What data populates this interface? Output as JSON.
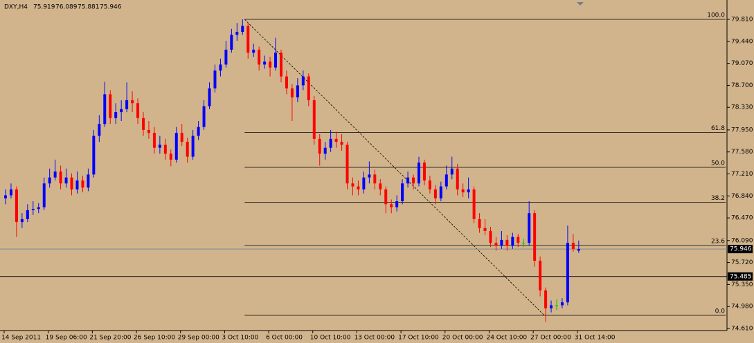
{
  "chart_data": {
    "type": "candlestick",
    "symbol": "DXY,H4",
    "categories": [
      "14 Sep 2011",
      null,
      null,
      null,
      null,
      null,
      null,
      null,
      "19 Sep 06:00",
      null,
      null,
      null,
      null,
      null,
      null,
      null,
      "21 Sep 20:00",
      null,
      null,
      null,
      null,
      null,
      null,
      null,
      "26 Sep 10:00",
      null,
      null,
      null,
      null,
      null,
      null,
      null,
      "29 Sep 00:00",
      null,
      null,
      null,
      null,
      null,
      null,
      null,
      "3 Oct 10:00",
      null,
      null,
      null,
      null,
      null,
      null,
      null,
      "6 Oct 00:00",
      null,
      null,
      null,
      null,
      null,
      null,
      null,
      "10 Oct 10:00",
      null,
      null,
      null,
      null,
      null,
      null,
      null,
      "13 Oct 00:00",
      null,
      null,
      null,
      null,
      null,
      null,
      null,
      "17 Oct 10:00",
      null,
      null,
      null,
      null,
      null,
      null,
      null,
      "20 Oct 00:00",
      null,
      null,
      null,
      null,
      null,
      null,
      null,
      "24 Oct 10:00",
      null,
      null,
      null,
      null,
      null,
      null,
      null,
      "27 Oct 00:00",
      null,
      null,
      null,
      null,
      null,
      null,
      null,
      "31 Oct 14:00"
    ],
    "open": [
      76.8,
      76.85,
      76.95,
      76.4,
      76.45,
      76.6,
      76.62,
      76.65,
      77.05,
      77.15,
      77.25,
      77.05,
      77.15,
      76.95,
      77.1,
      76.98,
      77.2,
      77.85,
      78.05,
      78.55,
      78.15,
      78.25,
      78.3,
      78.45,
      78.4,
      78.15,
      77.95,
      77.9,
      77.65,
      77.7,
      77.55,
      77.45,
      77.9,
      77.75,
      77.5,
      77.85,
      78.0,
      78.35,
      78.65,
      78.95,
      79.05,
      79.3,
      79.55,
      79.6,
      79.7,
      79.25,
      79.3,
      79.05,
      79.1,
      79.0,
      79.25,
      78.85,
      78.65,
      78.5,
      78.7,
      78.85,
      78.45,
      77.8,
      77.55,
      77.65,
      77.8,
      77.75,
      77.7,
      77.05,
      77.0,
      76.95,
      77.15,
      77.2,
      77.05,
      76.95,
      76.7,
      76.65,
      76.75,
      77.05,
      77.15,
      77.05,
      77.4,
      77.1,
      76.95,
      76.8,
      77.0,
      77.2,
      77.3,
      76.95,
      76.9,
      76.95,
      76.45,
      76.3,
      76.25,
      76.05,
      76.0,
      76.1,
      76.0,
      76.15,
      76.05,
      76.05,
      76.55,
      75.75,
      75.25,
      74.95,
      75.0,
      75.0,
      75.05,
      76.05,
      75.919
    ],
    "high": [
      76.95,
      77.05,
      77.0,
      76.55,
      76.7,
      76.75,
      76.72,
      77.15,
      77.3,
      77.45,
      77.35,
      77.3,
      77.22,
      77.25,
      77.18,
      77.3,
      77.95,
      78.2,
      78.76,
      78.62,
      78.4,
      78.45,
      78.75,
      78.6,
      78.48,
      78.25,
      78.1,
      78.0,
      77.85,
      77.8,
      77.62,
      78.0,
      78.05,
      77.82,
      77.95,
      78.1,
      78.45,
      78.75,
      79.05,
      79.15,
      79.45,
      79.65,
      79.75,
      79.81,
      79.75,
      79.4,
      79.35,
      79.2,
      79.18,
      79.5,
      79.3,
      78.95,
      78.72,
      78.82,
      78.95,
      78.9,
      78.52,
      77.88,
      77.75,
      77.95,
      77.92,
      77.88,
      77.75,
      77.15,
      77.1,
      77.25,
      77.42,
      77.28,
      77.12,
      77.0,
      76.78,
      76.85,
      77.12,
      77.25,
      77.2,
      77.5,
      77.45,
      77.18,
      77.02,
      77.08,
      77.35,
      77.5,
      77.38,
      77.05,
      77.15,
      77.0,
      76.55,
      76.45,
      76.32,
      76.15,
      76.25,
      76.18,
      76.22,
      76.2,
      76.12,
      76.75,
      76.6,
      75.82,
      75.3,
      75.08,
      75.1,
      75.12,
      76.34,
      76.2,
      76.089
    ],
    "low": [
      76.7,
      76.8,
      76.15,
      76.3,
      76.4,
      76.52,
      76.55,
      76.6,
      76.98,
      77.1,
      76.95,
      76.98,
      76.85,
      76.88,
      76.9,
      76.92,
      77.15,
      77.75,
      78.0,
      78.05,
      78.05,
      78.1,
      78.25,
      78.25,
      78.05,
      77.85,
      77.8,
      77.55,
      77.55,
      77.45,
      77.34,
      77.4,
      77.68,
      77.4,
      77.45,
      77.78,
      77.95,
      78.3,
      78.58,
      78.85,
      79.0,
      79.25,
      79.45,
      79.55,
      79.15,
      79.18,
      78.95,
      78.98,
      78.85,
      78.95,
      78.75,
      78.55,
      78.1,
      78.42,
      78.62,
      78.35,
      77.7,
      77.35,
      77.45,
      77.58,
      77.65,
      77.6,
      76.95,
      76.85,
      76.85,
      76.88,
      77.05,
      76.95,
      76.85,
      76.55,
      76.55,
      76.58,
      76.7,
      76.98,
      76.95,
      77.0,
      77.02,
      76.88,
      76.7,
      76.75,
      76.95,
      77.12,
      76.85,
      76.82,
      76.8,
      76.38,
      76.22,
      76.18,
      75.98,
      75.92,
      75.95,
      75.92,
      75.95,
      75.98,
      75.98,
      76.0,
      75.65,
      75.15,
      74.72,
      74.88,
      74.92,
      74.95,
      75.0,
      75.9,
      75.881
    ],
    "close": [
      76.85,
      76.95,
      76.4,
      76.45,
      76.6,
      76.62,
      76.65,
      77.05,
      77.15,
      77.25,
      77.05,
      77.15,
      76.95,
      77.1,
      76.98,
      77.2,
      77.85,
      78.05,
      78.55,
      78.15,
      78.25,
      78.3,
      78.45,
      78.4,
      78.15,
      77.95,
      77.9,
      77.65,
      77.7,
      77.55,
      77.45,
      77.9,
      77.75,
      77.5,
      77.85,
      78.0,
      78.35,
      78.65,
      78.95,
      79.05,
      79.3,
      79.55,
      79.6,
      79.7,
      79.25,
      79.3,
      79.05,
      79.1,
      79.0,
      79.25,
      78.85,
      78.65,
      78.5,
      78.7,
      78.85,
      78.45,
      77.8,
      77.55,
      77.65,
      77.8,
      77.75,
      77.7,
      77.05,
      77.0,
      76.95,
      77.15,
      77.2,
      77.05,
      76.95,
      76.7,
      76.65,
      76.75,
      77.05,
      77.15,
      77.05,
      77.4,
      77.1,
      76.95,
      76.8,
      77.0,
      77.2,
      77.3,
      76.95,
      76.9,
      76.95,
      76.45,
      76.3,
      76.25,
      76.05,
      76.0,
      76.1,
      76.0,
      76.15,
      76.05,
      76.05,
      76.55,
      75.75,
      75.25,
      74.95,
      75.0,
      75.0,
      75.05,
      76.05,
      75.95,
      75.946
    ],
    "up_color": "#0000ff",
    "down_color": "#ff0000",
    "doji_color": "#00c000",
    "ylim": [
      74.575,
      80.136
    ],
    "yticks": [
      {
        "value": 79.81,
        "label": "79.810"
      },
      {
        "value": 79.44,
        "label": "79.440"
      },
      {
        "value": 79.07,
        "label": "79.070"
      },
      {
        "value": 78.7,
        "label": "78.700"
      },
      {
        "value": 78.33,
        "label": "78.330"
      },
      {
        "value": 77.95,
        "label": "77.950"
      },
      {
        "value": 77.58,
        "label": "77.580"
      },
      {
        "value": 77.21,
        "label": "77.210"
      },
      {
        "value": 76.84,
        "label": "76.840"
      },
      {
        "value": 76.47,
        "label": "76.470"
      },
      {
        "value": 76.09,
        "label": "76.090"
      },
      {
        "value": 75.72,
        "label": "75.720"
      },
      {
        "value": 75.35,
        "label": "75.350"
      },
      {
        "value": 74.98,
        "label": "74.980"
      },
      {
        "value": 74.61,
        "label": "74.610"
      }
    ],
    "fibo": {
      "high": 79.81,
      "low": 74.831,
      "levels": [
        {
          "value": 100,
          "label": "100.0"
        },
        {
          "value": 61.8,
          "label": "61.8"
        },
        {
          "value": 50,
          "label": "50.0"
        },
        {
          "value": 38.2,
          "label": "38.2"
        },
        {
          "value": 23.6,
          "label": "23.6"
        },
        {
          "value": 0,
          "label": "0.0"
        }
      ]
    },
    "hline": 75.485,
    "grid": false
  }
}
